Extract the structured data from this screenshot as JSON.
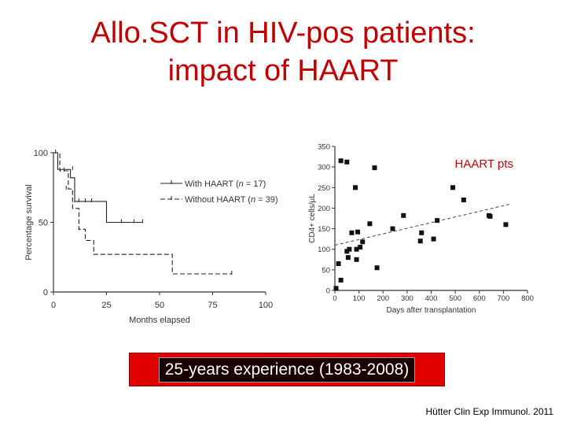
{
  "slide": {
    "title_line1": "Allo.SCT in HIV-pos patients:",
    "title_line2": "impact of HAART",
    "banner": "25-years experience (1983-2008)",
    "citation": "Hütter Clin Exp Immunol. 2011",
    "colors": {
      "title": "#c00000",
      "banner_bg": "#e00000",
      "banner_box": "#1b0000",
      "annotation": "#c00000"
    }
  },
  "chart_data": [
    {
      "type": "line",
      "variant": "kaplan-meier",
      "title": "",
      "xlabel": "Months elapsed",
      "ylabel": "Percentage survival",
      "xlim": [
        0,
        100
      ],
      "ylim": [
        0,
        100
      ],
      "xticks": [
        0,
        25,
        50,
        75,
        100
      ],
      "yticks": [
        0,
        50,
        100
      ],
      "legend_position": "right",
      "series": [
        {
          "name": "With HAART",
          "legend": {
            "prefix": "With HAART (",
            "italic": "n",
            "suffix": " = 17)"
          },
          "style": "solid",
          "steps": [
            [
              0,
              100
            ],
            [
              2,
              100
            ],
            [
              2,
              88
            ],
            [
              8,
              88
            ],
            [
              8,
              82
            ],
            [
              10,
              82
            ],
            [
              10,
              65
            ],
            [
              25,
              65
            ],
            [
              25,
              50
            ],
            [
              42,
              50
            ]
          ],
          "censored": [
            [
              1,
              100
            ],
            [
              9,
              88
            ],
            [
              12,
              65
            ],
            [
              15,
              65
            ],
            [
              18,
              65
            ],
            [
              32,
              50
            ],
            [
              38,
              50
            ],
            [
              42,
              50
            ]
          ]
        },
        {
          "name": "Without HAART",
          "legend": {
            "prefix": "Without HAART (",
            "italic": "n",
            "suffix": " = 39)"
          },
          "style": "dashed",
          "steps": [
            [
              0,
              100
            ],
            [
              3,
              100
            ],
            [
              3,
              87
            ],
            [
              7,
              87
            ],
            [
              7,
              74
            ],
            [
              9,
              74
            ],
            [
              9,
              60
            ],
            [
              12,
              60
            ],
            [
              12,
              45
            ],
            [
              15,
              45
            ],
            [
              15,
              37
            ],
            [
              19,
              37
            ],
            [
              19,
              27
            ],
            [
              56,
              27
            ],
            [
              56,
              13
            ],
            [
              84,
              13
            ]
          ],
          "censored": [
            [
              5,
              87
            ],
            [
              6,
              74
            ],
            [
              10,
              65
            ],
            [
              12,
              45
            ],
            [
              84,
              13
            ]
          ]
        }
      ]
    },
    {
      "type": "scatter",
      "title": "",
      "xlabel": "Days after transplantation",
      "ylabel": "CD4+ cells/µL",
      "xlim": [
        0,
        800
      ],
      "ylim": [
        0,
        350
      ],
      "xticks": [
        0,
        100,
        200,
        300,
        400,
        500,
        600,
        700,
        800
      ],
      "yticks": [
        0,
        50,
        100,
        150,
        200,
        250,
        300,
        350
      ],
      "annotation": "HAART pts",
      "trendline": {
        "style": "dashed",
        "from": [
          0,
          110
        ],
        "to": [
          730,
          210
        ]
      },
      "points": [
        [
          5,
          5
        ],
        [
          15,
          65
        ],
        [
          25,
          25
        ],
        [
          25,
          315
        ],
        [
          50,
          312
        ],
        [
          50,
          95
        ],
        [
          55,
          80
        ],
        [
          60,
          100
        ],
        [
          70,
          140
        ],
        [
          85,
          250
        ],
        [
          90,
          100
        ],
        [
          90,
          75
        ],
        [
          95,
          142
        ],
        [
          105,
          105
        ],
        [
          115,
          118
        ],
        [
          145,
          162
        ],
        [
          165,
          298
        ],
        [
          175,
          55
        ],
        [
          240,
          150
        ],
        [
          285,
          182
        ],
        [
          355,
          120
        ],
        [
          360,
          140
        ],
        [
          410,
          125
        ],
        [
          425,
          170
        ],
        [
          490,
          250
        ],
        [
          535,
          220
        ],
        [
          640,
          182
        ],
        [
          645,
          180
        ],
        [
          710,
          160
        ]
      ]
    }
  ]
}
